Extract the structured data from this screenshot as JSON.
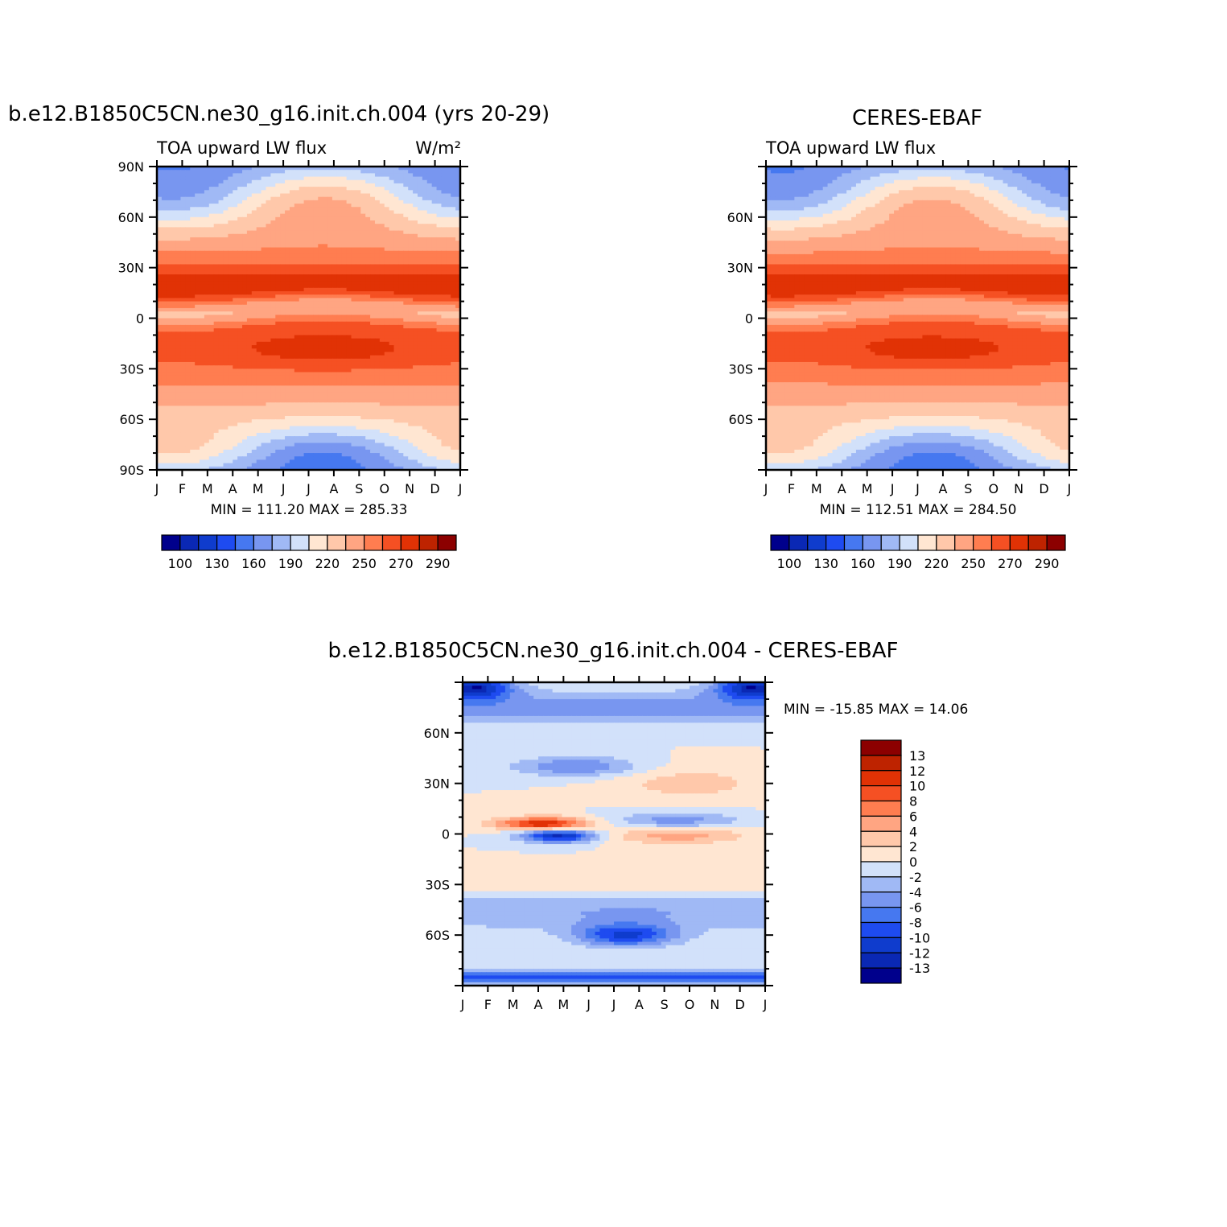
{
  "chart_data": [
    {
      "type": "heatmap",
      "title": "b.e12.B1850C5CN.ne30_g16.init.ch.004 (yrs 20-29)",
      "left_label": "TOA upward LW flux",
      "right_label": "W/m²",
      "x_ticks": [
        "J",
        "F",
        "M",
        "A",
        "M",
        "J",
        "J",
        "A",
        "S",
        "O",
        "N",
        "D",
        "J"
      ],
      "y_ticks": [
        "90N",
        "60N",
        "30N",
        "0",
        "30S",
        "60S",
        "90S"
      ],
      "ylim": [
        -90,
        90
      ],
      "stats": "MIN =  111.20  MAX =  285.33",
      "min": 111.2,
      "max": 285.33,
      "levels": [
        100,
        110,
        120,
        130,
        140,
        150,
        160,
        170,
        180,
        190,
        200,
        210,
        220,
        230,
        240,
        250,
        260,
        270,
        280,
        290
      ],
      "colorbar_labels": [
        "100",
        "130",
        "160",
        "190",
        "220",
        "250",
        "270",
        "290"
      ],
      "colormap": "blue-white-red"
    },
    {
      "type": "heatmap",
      "title": "CERES-EBAF",
      "left_label": "TOA upward LW flux",
      "x_ticks": [
        "J",
        "F",
        "M",
        "A",
        "M",
        "J",
        "J",
        "A",
        "S",
        "O",
        "N",
        "D",
        "J"
      ],
      "y_ticks": [
        "60N",
        "30N",
        "0",
        "30S",
        "60S"
      ],
      "ylim": [
        -90,
        90
      ],
      "stats": "MIN =  112.51  MAX =  284.50",
      "min": 112.51,
      "max": 284.5,
      "colorbar_labels": [
        "100",
        "130",
        "160",
        "190",
        "220",
        "250",
        "270",
        "290"
      ],
      "colormap": "blue-white-red"
    },
    {
      "type": "heatmap",
      "title": "b.e12.B1850C5CN.ne30_g16.init.ch.004  -  CERES-EBAF",
      "x_ticks": [
        "J",
        "F",
        "M",
        "A",
        "M",
        "J",
        "J",
        "A",
        "S",
        "O",
        "N",
        "D",
        "J"
      ],
      "y_ticks": [
        "60N",
        "30N",
        "0",
        "30S",
        "60S"
      ],
      "ylim": [
        -90,
        90
      ],
      "stats": "MIN = -15.85  MAX =   14.06",
      "min": -15.85,
      "max": 14.06,
      "colorbar_labels": [
        "13",
        "12",
        "10",
        "8",
        "6",
        "4",
        "2",
        "0",
        "-2",
        "-4",
        "-6",
        "-8",
        "-10",
        "-12",
        "-13"
      ],
      "colormap": "blue-white-red"
    }
  ],
  "colors": {
    "diverging": [
      "#00008c",
      "#0a28b4",
      "#0f3ccd",
      "#1e4bf0",
      "#4678f0",
      "#7896f0",
      "#a0b9f5",
      "#d2e1fa",
      "#ffe6d2",
      "#ffc8aa",
      "#ffa582",
      "#ff7d50",
      "#f55023",
      "#e13205",
      "#be2300",
      "#8c0000"
    ]
  }
}
